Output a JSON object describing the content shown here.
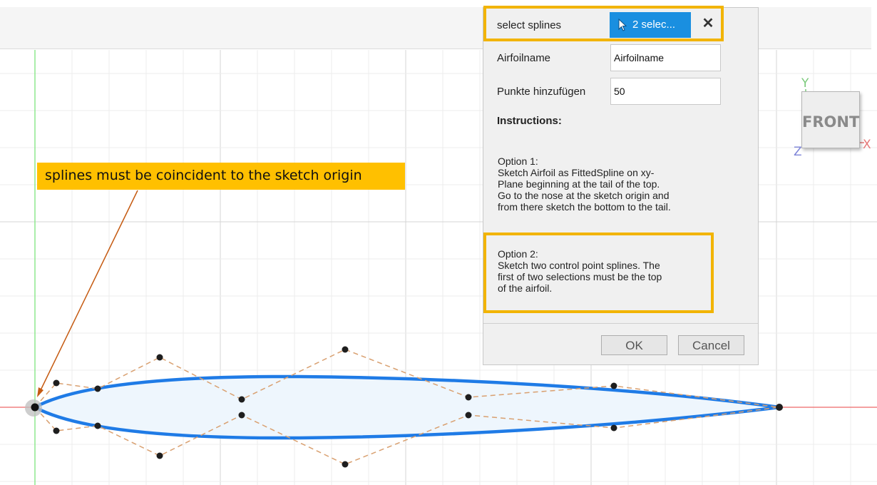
{
  "dialog": {
    "select_label": "select splines",
    "select_button": "2 selec...",
    "airfoil_label": "Airfoilname",
    "airfoil_value": "Airfoilname",
    "points_label": "Punkte hinzufügen",
    "points_value": "50",
    "instructions_title": "Instructions:",
    "option1": "Option 1:\nSketch Airfoil as FittedSpline on xy-\nPlane beginning at the tail of the top.\nGo to the nose at the sketch origin and\nfrom there sketch the bottom to the tail.",
    "option2": "Option 2:\nSketch two control point splines. The\nfirst of two selections must be the top\nof the airfoil.",
    "ok_label": "OK",
    "cancel_label": "Cancel",
    "select_button_color": "#1a8fe0"
  },
  "viewcube": {
    "face": "FRONT",
    "axis_x": "X",
    "axis_y": "Y",
    "axis_z": "Z"
  },
  "callout": {
    "text": "splines must be coincident to the sketch origin"
  },
  "colors": {
    "highlight": "#f2b400",
    "callout_bg": "#ffc000",
    "spline": "#1f7be6",
    "control_polygon": "#d9a070",
    "x_axis": "#f08080",
    "y_axis": "#8ee88e",
    "grid_minor": "#ececec",
    "grid_major": "#d4d4d4"
  }
}
